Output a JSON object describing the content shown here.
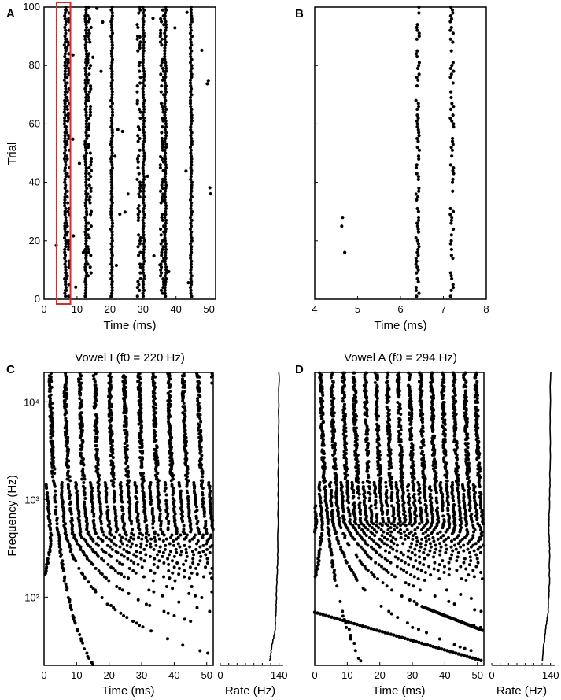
{
  "chart_data": [
    {
      "panel": "A",
      "type": "scatter",
      "xlabel": "Time (ms)",
      "ylabel": "Trial",
      "xlim": [
        0,
        52
      ],
      "ylim": [
        0,
        100
      ],
      "xticks": [
        "0",
        "10",
        "20",
        "30",
        "40",
        "50"
      ],
      "yticks": [
        "0",
        "20",
        "40",
        "60",
        "80",
        "100"
      ],
      "phase_locked_times_ms": [
        6.4,
        7.2,
        12.7,
        13.8,
        20.5,
        28.8,
        30.2,
        35.8,
        36.8,
        44.6
      ],
      "highlight_box_x": [
        3.8,
        8.0
      ],
      "highlight_box_color": "#e32626",
      "marker_color": "#000000"
    },
    {
      "panel": "B",
      "type": "scatter",
      "xlabel": "Time (ms)",
      "xlim": [
        4,
        8
      ],
      "ylim": [
        0,
        100
      ],
      "xticks": [
        "4",
        "5",
        "6",
        "7",
        "8"
      ],
      "phase_locked_times_ms": [
        6.4,
        7.2
      ],
      "isolated_points": [
        {
          "x": 4.65,
          "y": 28
        },
        {
          "x": 4.63,
          "y": 25
        },
        {
          "x": 4.7,
          "y": 16
        }
      ],
      "marker_color": "#000000"
    },
    {
      "panel": "C",
      "type": "scatter",
      "title": "Vowel I (f0 = 220 Hz)",
      "xlabel": "Time (ms)",
      "ylabel": "Frequency (Hz)",
      "xlim": [
        0,
        52
      ],
      "ylim": [
        20,
        20000
      ],
      "yscale": "log",
      "xticks": [
        "0",
        "10",
        "20",
        "30",
        "40",
        "50"
      ],
      "yticks": [
        "10²",
        "10³",
        "10⁴"
      ],
      "f0_hz": 220,
      "marker_color": "#000000"
    },
    {
      "panel": "C-rate",
      "type": "line",
      "xlabel": "Rate (Hz)",
      "xlim": [
        0,
        150
      ],
      "xticks": [
        "0",
        "140"
      ],
      "yscale": "log",
      "ylim": [
        20,
        20000
      ],
      "rate_profile": [
        {
          "freq_hz": 20000,
          "rate_hz": 140
        },
        {
          "freq_hz": 5000,
          "rate_hz": 139
        },
        {
          "freq_hz": 1000,
          "rate_hz": 138
        },
        {
          "freq_hz": 300,
          "rate_hz": 137
        },
        {
          "freq_hz": 150,
          "rate_hz": 135
        },
        {
          "freq_hz": 80,
          "rate_hz": 133
        },
        {
          "freq_hz": 45,
          "rate_hz": 130
        },
        {
          "freq_hz": 30,
          "rate_hz": 122
        },
        {
          "freq_hz": 22,
          "rate_hz": 118
        }
      ]
    },
    {
      "panel": "D",
      "type": "scatter",
      "title": "Vowel A (f0 = 294 Hz)",
      "xlabel": "Time (ms)",
      "xlim": [
        0,
        52
      ],
      "ylim": [
        20,
        20000
      ],
      "yscale": "log",
      "xticks": [
        "0",
        "10",
        "20",
        "30",
        "40",
        "50"
      ],
      "f0_hz": 294,
      "marker_color": "#000000"
    },
    {
      "panel": "D-rate",
      "type": "line",
      "xlabel": "Rate (Hz)",
      "xlim": [
        0,
        150
      ],
      "xticks": [
        "0",
        "140"
      ],
      "yscale": "log",
      "ylim": [
        20,
        20000
      ],
      "rate_profile": [
        {
          "freq_hz": 20000,
          "rate_hz": 140
        },
        {
          "freq_hz": 2000,
          "rate_hz": 139
        },
        {
          "freq_hz": 700,
          "rate_hz": 137
        },
        {
          "freq_hz": 500,
          "rate_hz": 136
        },
        {
          "freq_hz": 300,
          "rate_hz": 138
        },
        {
          "freq_hz": 120,
          "rate_hz": 137
        },
        {
          "freq_hz": 70,
          "rate_hz": 134
        },
        {
          "freq_hz": 45,
          "rate_hz": 128
        },
        {
          "freq_hz": 22,
          "rate_hz": 120
        }
      ]
    }
  ]
}
